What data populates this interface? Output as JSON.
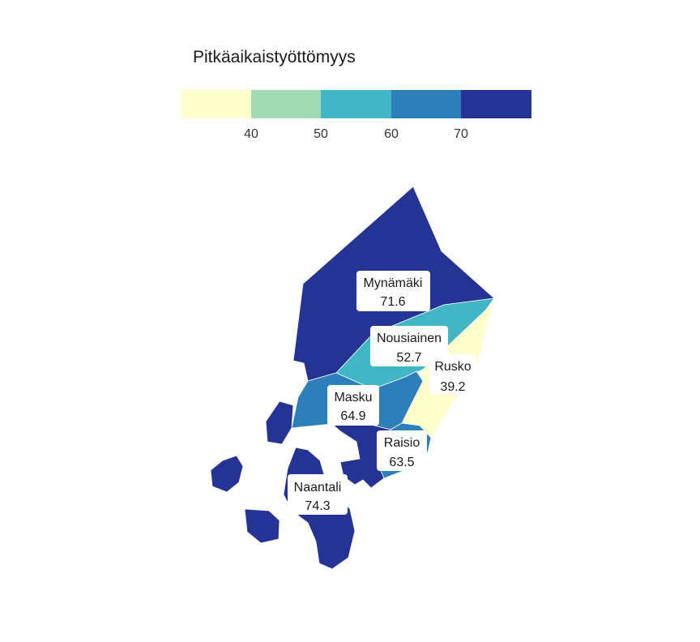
{
  "legend": {
    "title": "Pitkäaikaistyöttömyys",
    "breaks": [
      40,
      50,
      60,
      70
    ],
    "tick_labels": [
      "40",
      "50",
      "60",
      "70"
    ],
    "colors": [
      "#ffffcc",
      "#a1dab4",
      "#41b6c4",
      "#2c7fb8",
      "#253494"
    ]
  },
  "regions": [
    {
      "id": "mynamaki",
      "name": "Mynämäki",
      "value_label": "71.6",
      "value": 71.6
    },
    {
      "id": "nousiainen",
      "name": "Nousiainen",
      "value_label": "52.7",
      "value": 52.7
    },
    {
      "id": "rusko",
      "name": "Rusko",
      "value_label": "39.2",
      "value": 39.2
    },
    {
      "id": "masku",
      "name": "Masku",
      "value_label": "64.9",
      "value": 64.9
    },
    {
      "id": "raisio",
      "name": "Raisio",
      "value_label": "63.5",
      "value": 63.5
    },
    {
      "id": "naantali",
      "name": "Naantali",
      "value_label": "74.3",
      "value": 74.3
    }
  ]
}
